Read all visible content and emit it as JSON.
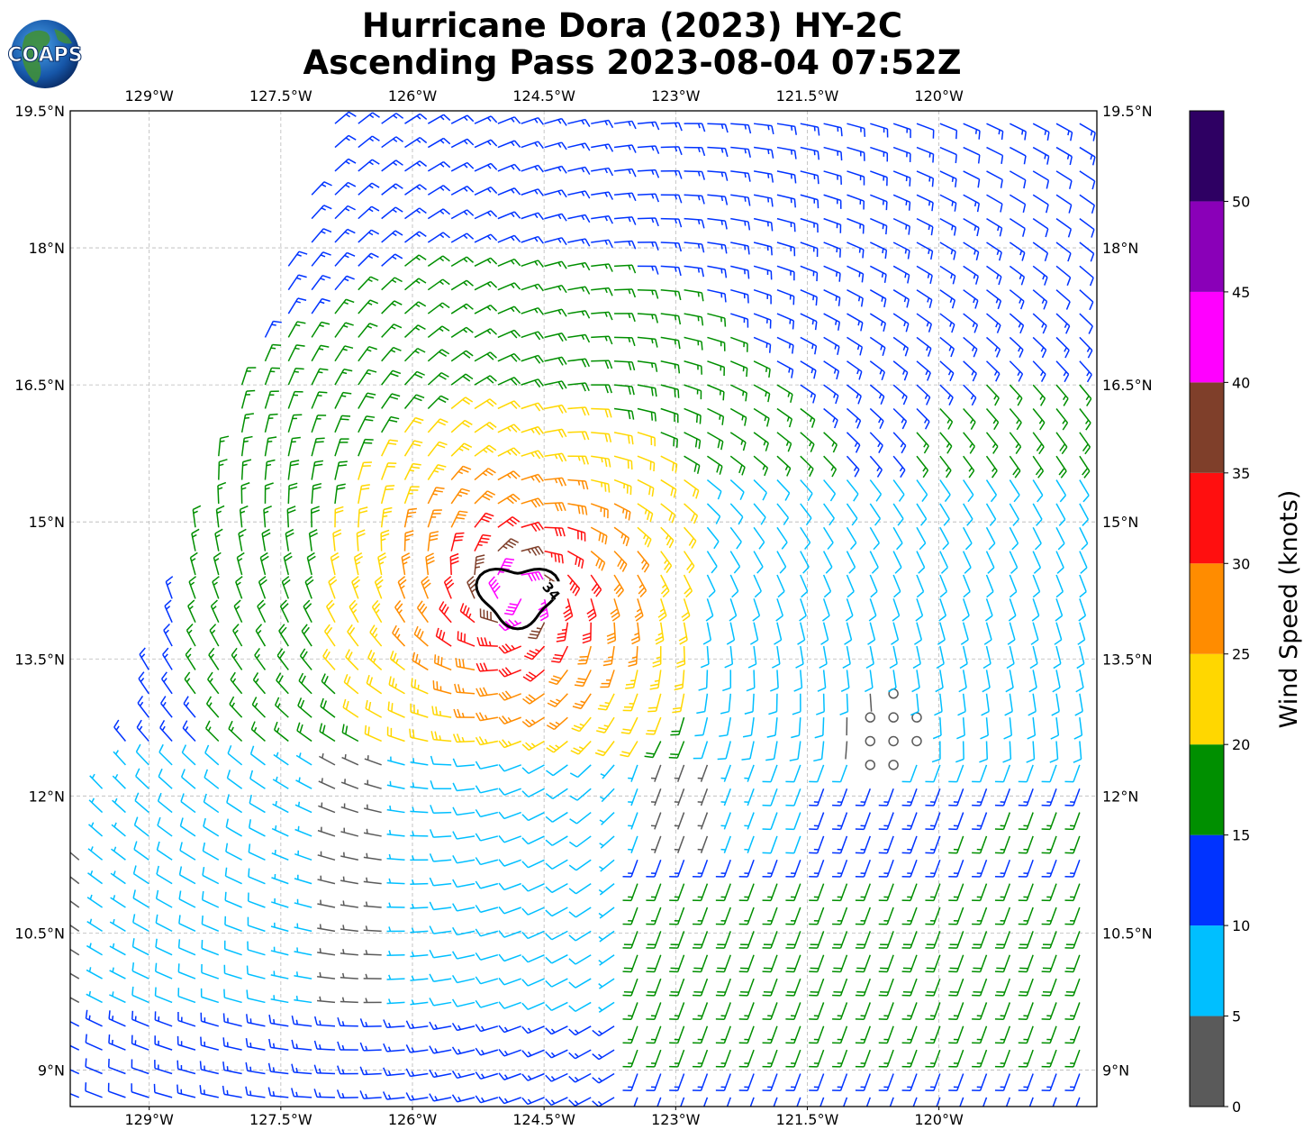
{
  "logo": {
    "text": "COAPS"
  },
  "chart_data": {
    "type": "wind-barb-map",
    "title": [
      "Hurricane Dora (2023) HY-2C",
      "Ascending Pass 2023-08-04 07:52Z"
    ],
    "lon_range": [
      -129.9,
      -118.2
    ],
    "lat_range": [
      8.6,
      19.5
    ],
    "x_ticks": [
      {
        "value": -129,
        "label": "129°W"
      },
      {
        "value": -127.5,
        "label": "127.5°W"
      },
      {
        "value": -126,
        "label": "126°W"
      },
      {
        "value": -124.5,
        "label": "124.5°W"
      },
      {
        "value": -123,
        "label": "123°W"
      },
      {
        "value": -121.5,
        "label": "121.5°W"
      },
      {
        "value": -120,
        "label": "120°W"
      }
    ],
    "y_ticks": [
      {
        "value": 19.5,
        "label": "19.5°N"
      },
      {
        "value": 18,
        "label": "18°N"
      },
      {
        "value": 16.5,
        "label": "16.5°N"
      },
      {
        "value": 15,
        "label": "15°N"
      },
      {
        "value": 13.5,
        "label": "13.5°N"
      },
      {
        "value": 12,
        "label": "12°N"
      },
      {
        "value": 10.5,
        "label": "10.5°N"
      },
      {
        "value": 9,
        "label": "9°N"
      }
    ],
    "grid": true,
    "center": {
      "lon": -124.8,
      "lat": 14.2
    },
    "calm_center": {
      "lon": -120.6,
      "lat": 12.7
    },
    "contour": {
      "label": "34",
      "value_knots": 34
    },
    "colorbar": {
      "label": "Wind Speed (knots)",
      "ticks": [
        0,
        5,
        10,
        15,
        20,
        25,
        30,
        35,
        40,
        45,
        50
      ],
      "bins": [
        {
          "min": 0,
          "max": 5,
          "color": "#5a5a5a"
        },
        {
          "min": 5,
          "max": 10,
          "color": "#00bfff"
        },
        {
          "min": 10,
          "max": 15,
          "color": "#0033ff"
        },
        {
          "min": 15,
          "max": 20,
          "color": "#008f00"
        },
        {
          "min": 20,
          "max": 25,
          "color": "#ffd700"
        },
        {
          "min": 25,
          "max": 30,
          "color": "#ff8c00"
        },
        {
          "min": 30,
          "max": 35,
          "color": "#ff0f0f"
        },
        {
          "min": 35,
          "max": 40,
          "color": "#7f3f2a"
        },
        {
          "min": 40,
          "max": 45,
          "color": "#ff00ff"
        },
        {
          "min": 45,
          "max": 50,
          "color": "#8a00b8"
        },
        {
          "min": 50,
          "max": 55,
          "color": "#2e0063"
        }
      ]
    }
  }
}
